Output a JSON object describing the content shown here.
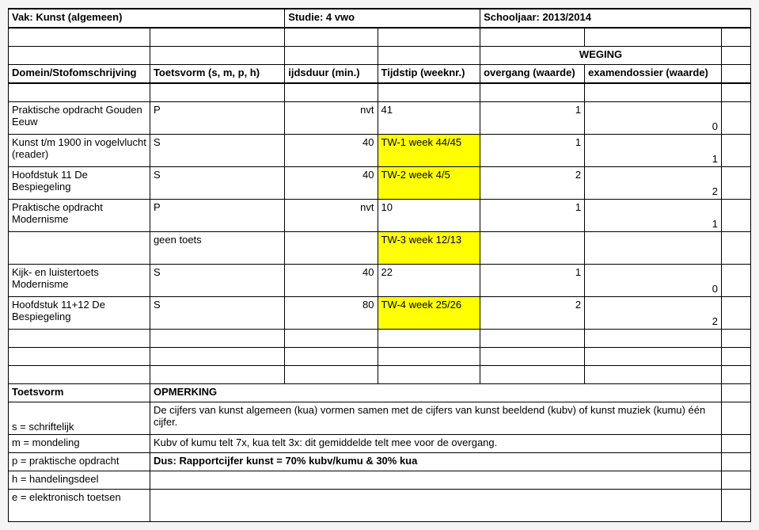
{
  "header": {
    "vak_label": "Vak: Kunst (algemeen)",
    "studie_label": "Studie: 4 vwo",
    "schooljaar_label": "Schooljaar: 2013/2014",
    "weging_label": "WEGING",
    "col1": "Domein/Stofomschrijving",
    "col2": "Toetsvorm  (s, m, p, h)",
    "col3": "ijdsduur (min.)",
    "col4": "Tijdstip (weeknr.)",
    "col5": "overgang (waarde)",
    "col6": "examendossier (waarde)"
  },
  "rows": [
    {
      "name": "Praktische opdracht Gouden Eeuw",
      "vorm": "P",
      "duur": "nvt",
      "tijd": "41",
      "tijd_yellow": false,
      "ov": "1",
      "ex": "0"
    },
    {
      "name": "Kunst t/m 1900 in vogelvlucht (reader)",
      "vorm": "S",
      "duur": "40",
      "tijd": "TW-1 week 44/45",
      "tijd_yellow": true,
      "ov": "1",
      "ex": "1"
    },
    {
      "name": "Hoofdstuk 11 De Bespiegeling",
      "vorm": "S",
      "duur": "40",
      "tijd": "TW-2 week 4/5",
      "tijd_yellow": true,
      "ov": "2",
      "ex": "2"
    },
    {
      "name": "Praktische opdracht Modernisme",
      "vorm": "P",
      "duur": "nvt",
      "tijd": "10",
      "tijd_yellow": false,
      "ov": "1",
      "ex": "1"
    },
    {
      "name": "",
      "vorm": "geen toets",
      "duur": "",
      "tijd": "TW-3 week 12/13",
      "tijd_yellow": true,
      "ov": "",
      "ex": ""
    },
    {
      "name": "Kijk- en luistertoets Modernisme",
      "vorm": "S",
      "duur": "40",
      "tijd": "22",
      "tijd_yellow": false,
      "ov": "1",
      "ex": "0"
    },
    {
      "name": "Hoofdstuk 11+12 De Bespiegeling",
      "vorm": "S",
      "duur": "80",
      "tijd": "TW-4 week 25/26",
      "tijd_yellow": true,
      "ov": "2",
      "ex": "2"
    }
  ],
  "footer": {
    "toetsvorm": "Toetsvorm",
    "opmerking": "OPMERKING",
    "s_label": "s = schriftelijk",
    "s_text": "De cijfers van kunst algemeen (kua) vormen samen met de cijfers van kunst beeldend (kubv) of kunst muziek (kumu) één cijfer.",
    "m_label": "m = mondeling",
    "m_text": "Kubv of kumu telt 7x, kua telt 3x: dit gemiddelde telt mee voor de overgang.",
    "p_label": "p = praktische opdracht",
    "p_text": "Dus: Rapportcijfer kunst = 70% kubv/kumu & 30% kua",
    "h_label": "h = handelingsdeel",
    "e_label": "e = elektronisch toetsen"
  },
  "colors": {
    "highlight": "#ffff00",
    "border": "#000000",
    "bg": "#ffffff"
  }
}
